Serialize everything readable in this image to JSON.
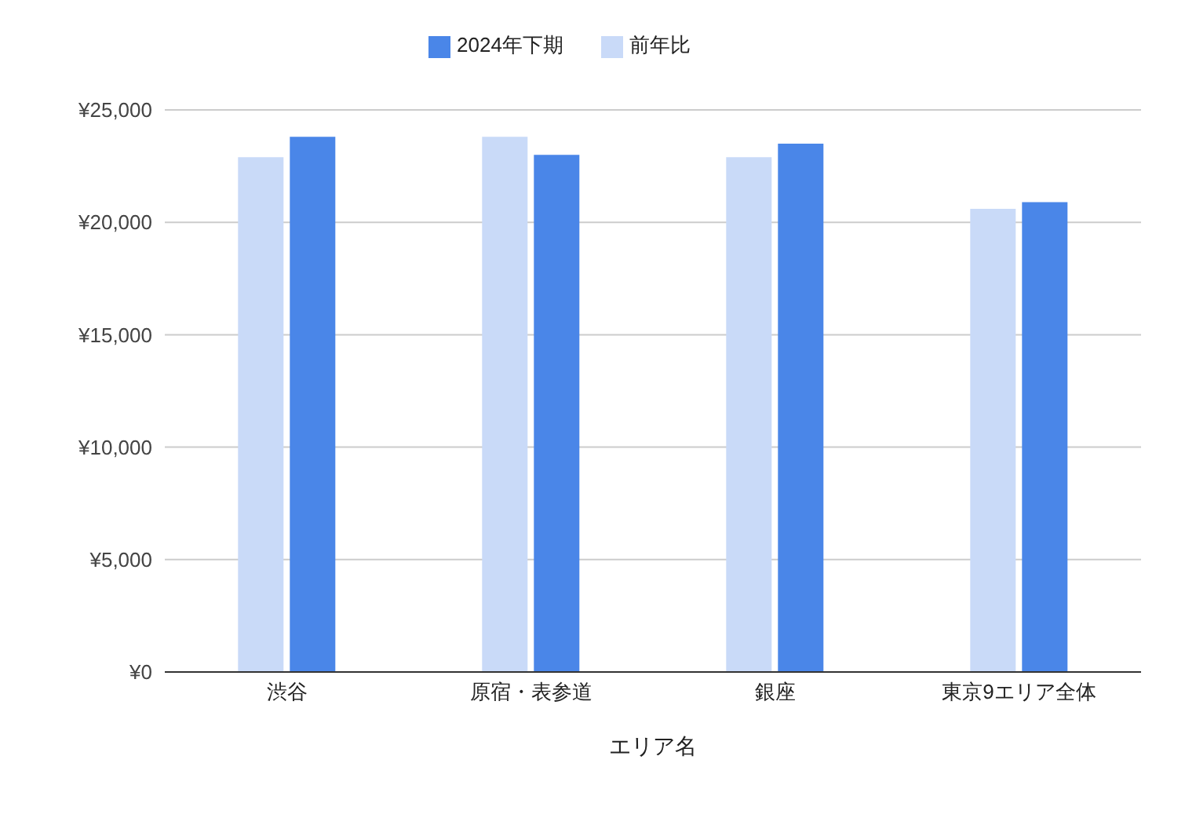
{
  "chart_data": {
    "type": "bar",
    "xlabel": "エリア名",
    "categories": [
      "渋谷",
      "原宿・表参道",
      "銀座",
      "東京9エリア全体"
    ],
    "series": [
      {
        "name": "前年比",
        "color": "#c9daf8",
        "values": [
          22900,
          23800,
          22900,
          20600
        ]
      },
      {
        "name": "2024年下期",
        "color": "#4a86e8",
        "values": [
          23800,
          23000,
          23500,
          20900
        ]
      }
    ],
    "ylim": [
      0,
      25000
    ],
    "yticks": [
      {
        "value": 0,
        "label": "¥0"
      },
      {
        "value": 5000,
        "label": "¥5,000"
      },
      {
        "value": 10000,
        "label": "¥10,000"
      },
      {
        "value": 15000,
        "label": "¥15,000"
      },
      {
        "value": 20000,
        "label": "¥20,000"
      },
      {
        "value": 25000,
        "label": "¥25,000"
      }
    ],
    "grid": "y",
    "legend": "top"
  }
}
